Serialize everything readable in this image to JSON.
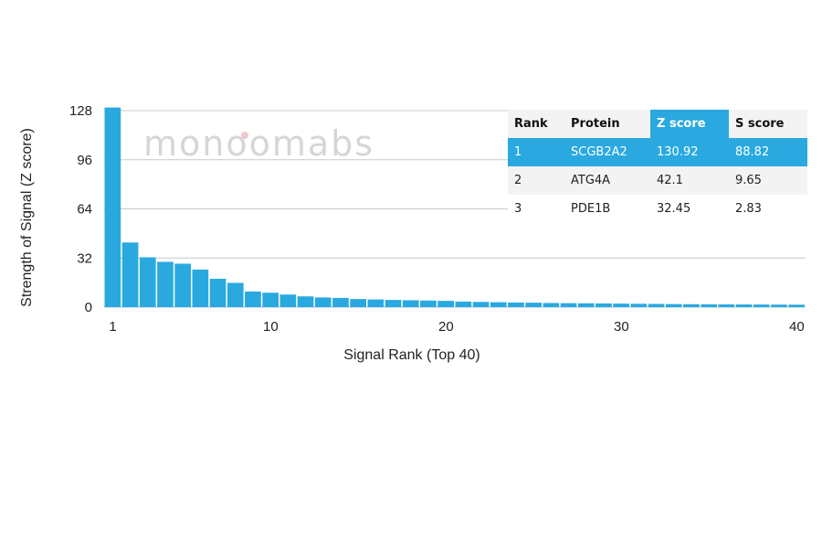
{
  "chart_data": {
    "type": "bar",
    "xlabel": "Signal Rank (Top 40)",
    "ylabel": "Strength of Signal (Z score)",
    "ylim": [
      0,
      130
    ],
    "xlim": [
      1,
      40
    ],
    "yticks": [
      0,
      32,
      64,
      96,
      128
    ],
    "xticks": [
      1,
      10,
      20,
      30,
      40
    ],
    "grid": "horizontal",
    "bar_color": "#29a9e0",
    "x": [
      1,
      2,
      3,
      4,
      5,
      6,
      7,
      8,
      9,
      10,
      11,
      12,
      13,
      14,
      15,
      16,
      17,
      18,
      19,
      20,
      21,
      22,
      23,
      24,
      25,
      26,
      27,
      28,
      29,
      30,
      31,
      32,
      33,
      34,
      35,
      36,
      37,
      38,
      39,
      40
    ],
    "values": [
      130.92,
      42.1,
      32.45,
      29.5,
      28.3,
      24.5,
      18.5,
      15.8,
      10.2,
      9.4,
      8.2,
      7.0,
      6.3,
      6.0,
      5.3,
      5.0,
      4.7,
      4.5,
      4.3,
      4.1,
      3.6,
      3.4,
      3.2,
      3.0,
      2.9,
      2.7,
      2.6,
      2.5,
      2.4,
      2.3,
      2.2,
      2.1,
      2.0,
      1.9,
      1.85,
      1.8,
      1.75,
      1.7,
      1.65,
      1.6
    ]
  },
  "watermark": "monoomabs",
  "table": {
    "headers": [
      "Rank",
      "Protein",
      "Z score",
      "S score"
    ],
    "rows": [
      [
        "1",
        "SCGB2A2",
        "130.92",
        "88.82"
      ],
      [
        "2",
        "ATG4A",
        "42.1",
        "9.65"
      ],
      [
        "3",
        "PDE1B",
        "32.45",
        "2.83"
      ]
    ],
    "highlight_color": "#29a9e0"
  }
}
